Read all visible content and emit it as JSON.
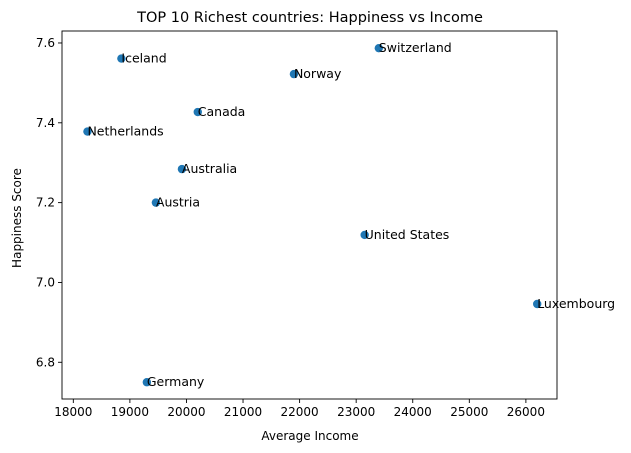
{
  "chart_data": {
    "type": "scatter",
    "title": "TOP 10 Richest countries: Happiness vs Income",
    "xlabel": "Average Income",
    "ylabel": "Happiness Score",
    "xlim": [
      17800,
      26550
    ],
    "ylim": [
      6.708,
      7.63
    ],
    "xticks": [
      18000,
      19000,
      20000,
      21000,
      22000,
      23000,
      24000,
      25000,
      26000
    ],
    "yticks": [
      6.8,
      7.0,
      7.2,
      7.4,
      7.6
    ],
    "ytick_labels": [
      "6.8",
      "7.0",
      "7.2",
      "7.4",
      "7.6"
    ],
    "grid": false,
    "marker_color": "#1f77b4",
    "points": [
      {
        "label": "Iceland",
        "x": 18850,
        "y": 7.561
      },
      {
        "label": "Netherlands",
        "x": 18250,
        "y": 7.378
      },
      {
        "label": "Canada",
        "x": 20200,
        "y": 7.427
      },
      {
        "label": "Australia",
        "x": 19920,
        "y": 7.284
      },
      {
        "label": "Austria",
        "x": 19460,
        "y": 7.2
      },
      {
        "label": "Norway",
        "x": 21900,
        "y": 7.522
      },
      {
        "label": "Switzerland",
        "x": 23400,
        "y": 7.587
      },
      {
        "label": "United States",
        "x": 23150,
        "y": 7.119
      },
      {
        "label": "Luxembourg",
        "x": 26200,
        "y": 6.946
      },
      {
        "label": "Germany",
        "x": 19300,
        "y": 6.75
      }
    ]
  }
}
